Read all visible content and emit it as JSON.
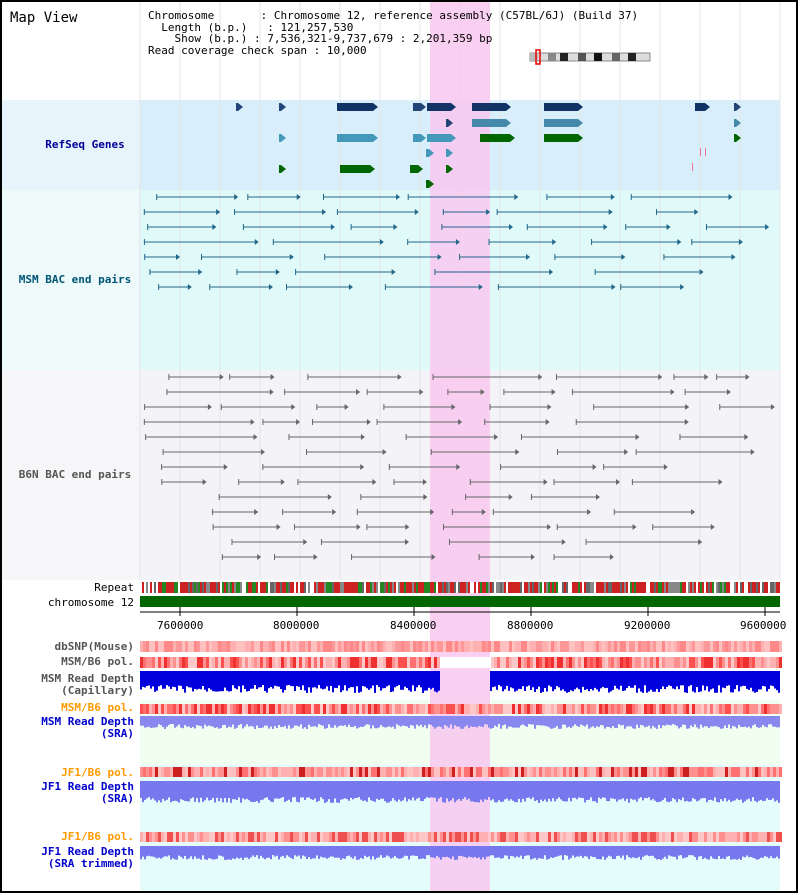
{
  "title": "Map View",
  "header": {
    "chrom_label": "Chromosome",
    "chrom_value": "Chromosome 12, reference assembly (C57BL/6J) (Build 37)",
    "length_label": "Length (b.p.)",
    "length_value": "121,257,530",
    "show_label": "Show (b.p.)",
    "show_value": "7,536,321-9,737,679 : 2,201,359 bp",
    "span_label": "Read coverage check span",
    "span_value": "10,000"
  },
  "tracks": {
    "refseq": "RefSeq Genes",
    "msm_bac": "MSM BAC end pairs",
    "b6n_bac": "B6N BAC end pairs",
    "repeat": "Repeat",
    "chromosome": "chromosome 12",
    "dbsnp": "dbSNP(Mouse)",
    "msm_pol1": "MSM/B6 pol.",
    "msm_depth_cap_1": "MSM Read Depth",
    "msm_depth_cap_2": "(Capillary)",
    "msm_pol2": "MSM/B6 pol.",
    "msm_depth_sra_1": "MSM Read Depth",
    "msm_depth_sra_2": "(SRA)",
    "jf1_pol1": "JF1/B6 pol.",
    "jf1_depth_1": "JF1 Read Depth",
    "jf1_depth_2": "(SRA)",
    "jf1_pol2": "JF1/B6 pol.",
    "jf1_trim_1": "JF1 Read Depth",
    "jf1_trim_2": "(SRA trimmed)"
  },
  "axis_ticks": [
    "7600000",
    "8000000",
    "8400000",
    "8800000",
    "9200000",
    "9600000"
  ],
  "colors": {
    "refseq_label": "#000099",
    "msm_bac_label": "#005577",
    "b6n_label": "#555555",
    "pol_orange": "#ff9900",
    "depth_blue": "#0000cc",
    "highlight": "#f8c8f0",
    "chromosome_bar": "#006600"
  }
}
